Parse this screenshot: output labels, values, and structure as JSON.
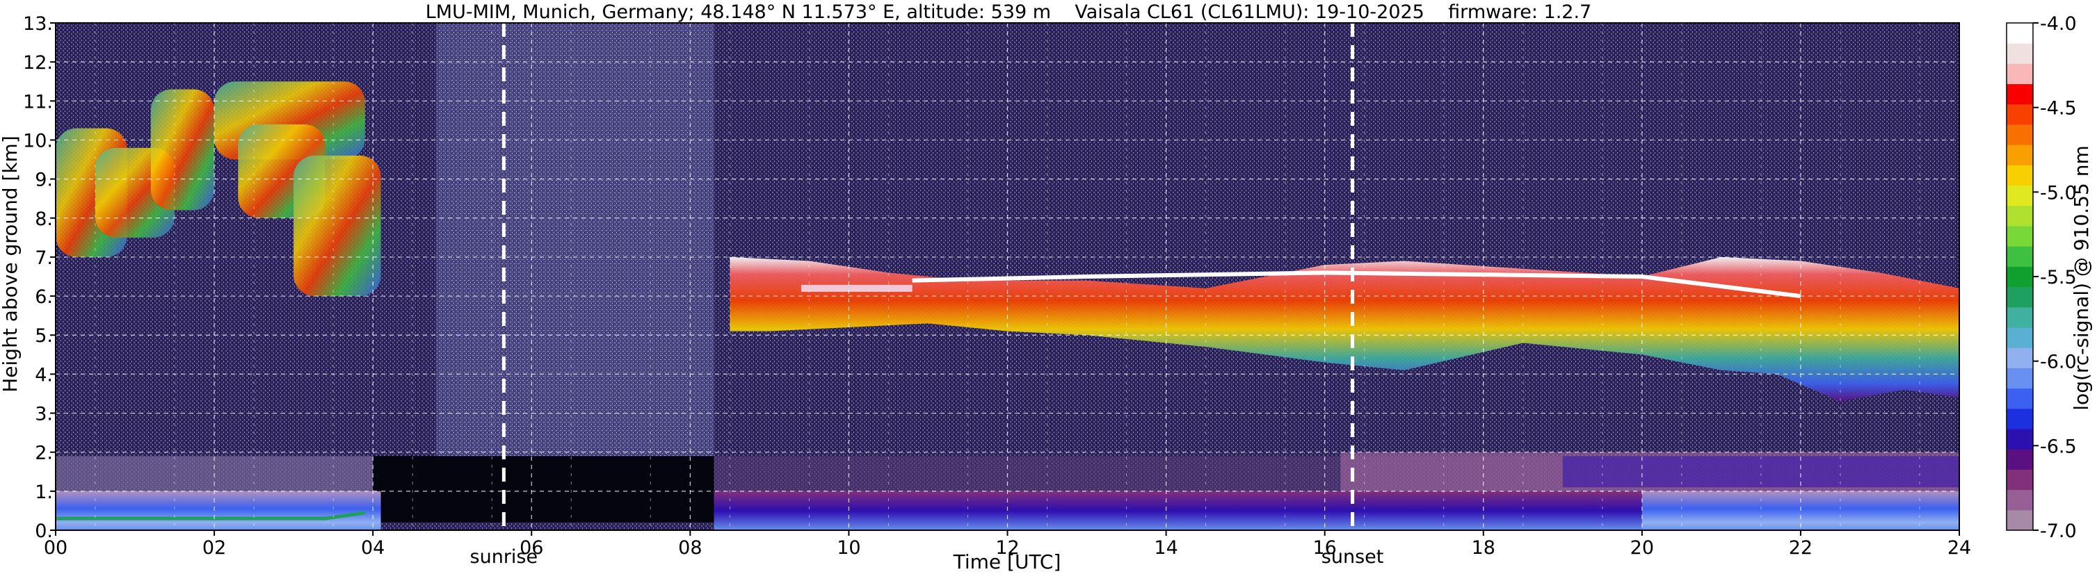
{
  "chart_data": {
    "type": "heatmap",
    "title": "LMU-MIM, Munich, Germany; 48.148° N 11.573° E, altitude: 539 m    Vaisala CL61 (CL61LMU): 19-10-2025    firmware: 1.2.7",
    "xlabel": "Time [UTC]",
    "ylabel": "Height above ground [km]",
    "xlim": [
      0,
      24
    ],
    "ylim": [
      0,
      13
    ],
    "x_ticks": [
      {
        "value": 0,
        "label": "00"
      },
      {
        "value": 2,
        "label": "02"
      },
      {
        "value": 4,
        "label": "04"
      },
      {
        "value": 6,
        "label": "06"
      },
      {
        "value": 8,
        "label": "08"
      },
      {
        "value": 10,
        "label": "10"
      },
      {
        "value": 12,
        "label": "12"
      },
      {
        "value": 14,
        "label": "14"
      },
      {
        "value": 16,
        "label": "16"
      },
      {
        "value": 18,
        "label": "18"
      },
      {
        "value": 20,
        "label": "20"
      },
      {
        "value": 22,
        "label": "22"
      },
      {
        "value": 24,
        "label": "24"
      }
    ],
    "y_ticks": [
      {
        "value": 0,
        "label": "0."
      },
      {
        "value": 1,
        "label": "1."
      },
      {
        "value": 2,
        "label": "2."
      },
      {
        "value": 3,
        "label": "3."
      },
      {
        "value": 4,
        "label": "4."
      },
      {
        "value": 5,
        "label": "5."
      },
      {
        "value": 6,
        "label": "6."
      },
      {
        "value": 7,
        "label": "7."
      },
      {
        "value": 8,
        "label": "8."
      },
      {
        "value": 9,
        "label": "9."
      },
      {
        "value": 10,
        "label": "10."
      },
      {
        "value": 11,
        "label": "11."
      },
      {
        "value": 12,
        "label": "12."
      },
      {
        "value": 13,
        "label": "13."
      }
    ],
    "grid": true,
    "annotations": [
      {
        "x": 5.65,
        "label": "sunrise"
      },
      {
        "x": 16.35,
        "label": "sunset"
      }
    ],
    "colorbar": {
      "label": "log(rc-signal) @ 910.55 nm",
      "range": [
        -7.0,
        -4.0
      ],
      "ticks": [
        {
          "value": -4.0,
          "label": "-4.0"
        },
        {
          "value": -4.5,
          "label": "-4.5"
        },
        {
          "value": -5.0,
          "label": "-5.0"
        },
        {
          "value": -5.5,
          "label": "-5.5"
        },
        {
          "value": -6.0,
          "label": "-6.0"
        },
        {
          "value": -6.5,
          "label": "-6.5"
        },
        {
          "value": -7.0,
          "label": "-7.0"
        }
      ],
      "colors": [
        "#a68aa6",
        "#966096",
        "#82307a",
        "#5a1080",
        "#2c10b0",
        "#1c30e0",
        "#3c60f0",
        "#6890f0",
        "#90b0f0",
        "#5ab0d0",
        "#40b0a0",
        "#20a060",
        "#10a030",
        "#40c040",
        "#78d838",
        "#b0e030",
        "#e0e820",
        "#f8d000",
        "#f8a000",
        "#f87000",
        "#f84000",
        "#f80000",
        "#f8b8b8",
        "#f0e0e0",
        "#ffffff"
      ]
    },
    "features": [
      {
        "name": "cirrus",
        "t_start": 0.0,
        "t_end": 4.1,
        "z_bottom": 5.7,
        "z_top": 11.4,
        "level": -5.1
      },
      {
        "name": "cloud_layer",
        "t_start": 8.5,
        "t_end": 24.0,
        "z_bottom": 3.3,
        "z_top": 7.4,
        "level": -4.6
      },
      {
        "name": "boundary_layer",
        "t_start": 0.0,
        "t_end": 24.0,
        "z_bottom": 0.0,
        "z_top": 1.0,
        "level": -6.0
      },
      {
        "name": "noise_gap",
        "t_start": 4.8,
        "t_end": 8.3,
        "z_bottom": 0.2,
        "z_top": 1.9,
        "level": -7.0
      }
    ]
  }
}
